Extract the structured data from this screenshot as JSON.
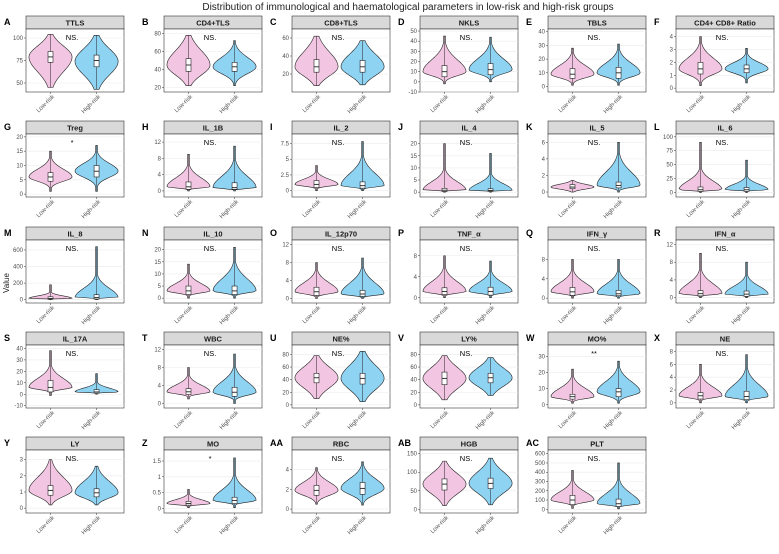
{
  "title": "Distribution of immunological and haematological parameters in low-risk and high-risk groups",
  "y_axis_label": "Value",
  "groups": [
    "Low-risk",
    "High-risk"
  ],
  "colors": {
    "low": "#f2c6e2",
    "high": "#8fd3f3",
    "strip": "#d9d9d9",
    "panel_border": "#333333",
    "grid": "#ebebeb"
  },
  "chart_data": [
    {
      "tag": "A",
      "name": "TTLS",
      "type": "violin",
      "sig": "NS.",
      "ylim": [
        40,
        110
      ],
      "yticks": [
        50,
        75,
        100
      ],
      "low": {
        "q1": 73,
        "median": 79,
        "q3": 85,
        "min": 45,
        "max": 104,
        "mode": 79,
        "spread": 0.8
      },
      "high": {
        "q1": 68,
        "median": 75,
        "q3": 81,
        "min": 43,
        "max": 103,
        "mode": 74,
        "spread": 0.8
      }
    },
    {
      "tag": "B",
      "name": "CD4+TLS",
      "type": "violin",
      "sig": "NS.",
      "ylim": [
        15,
        85
      ],
      "yticks": [
        20,
        40,
        60,
        80
      ],
      "low": {
        "q1": 38,
        "median": 45,
        "q3": 52,
        "min": 22,
        "max": 78,
        "mode": 45,
        "spread": 0.8
      },
      "high": {
        "q1": 38,
        "median": 43,
        "q3": 48,
        "min": 22,
        "max": 72,
        "mode": 43,
        "spread": 0.6
      }
    },
    {
      "tag": "C",
      "name": "CD8+TLS",
      "type": "violin",
      "sig": "NS.",
      "ylim": [
        0,
        70
      ],
      "yticks": [
        20,
        40,
        60
      ],
      "low": {
        "q1": 22,
        "median": 28,
        "q3": 36,
        "min": 7,
        "max": 62,
        "mode": 28,
        "spread": 0.8
      },
      "high": {
        "q1": 22,
        "median": 28,
        "q3": 35,
        "min": 8,
        "max": 57,
        "mode": 28,
        "spread": 0.8
      }
    },
    {
      "tag": "D",
      "name": "NKLS",
      "type": "violin",
      "sig": "NS.",
      "ylim": [
        -10,
        52
      ],
      "yticks": [
        -10,
        0,
        10,
        20,
        30,
        40,
        50
      ],
      "low": {
        "q1": 5,
        "median": 10,
        "q3": 16,
        "min": -2,
        "max": 45,
        "mode": 10,
        "spread": 0.55
      },
      "high": {
        "q1": 7,
        "median": 12,
        "q3": 18,
        "min": 0,
        "max": 44,
        "mode": 12,
        "spread": 0.55
      }
    },
    {
      "tag": "E",
      "name": "TBLS",
      "type": "violin",
      "sig": "NS.",
      "ylim": [
        -4,
        42
      ],
      "yticks": [
        0,
        10,
        20,
        30,
        40
      ],
      "low": {
        "q1": 6,
        "median": 9,
        "q3": 13,
        "min": 1,
        "max": 28,
        "mode": 9,
        "spread": 0.55
      },
      "high": {
        "q1": 6,
        "median": 10,
        "q3": 14,
        "min": 1,
        "max": 31,
        "mode": 10,
        "spread": 0.55
      }
    },
    {
      "tag": "F",
      "name": "CD4+ CD8+ Ratio",
      "type": "violin",
      "sig": "NS.",
      "ylim": [
        -0.3,
        4.6
      ],
      "yticks": [
        0,
        1,
        2,
        3,
        4
      ],
      "low": {
        "q1": 1.1,
        "median": 1.5,
        "q3": 2.0,
        "min": 0.2,
        "max": 4.0,
        "mode": 1.5,
        "spread": 0.55
      },
      "high": {
        "q1": 1.2,
        "median": 1.5,
        "q3": 1.8,
        "min": 0.4,
        "max": 3.1,
        "mode": 1.5,
        "spread": 0.5
      }
    },
    {
      "tag": "G",
      "name": "Treg",
      "type": "violin",
      "sig": "*",
      "ylim": [
        -1,
        21
      ],
      "yticks": [
        0,
        5,
        10,
        15,
        20
      ],
      "low": {
        "q1": 4.5,
        "median": 6,
        "q3": 7.5,
        "min": 1,
        "max": 15,
        "mode": 6,
        "spread": 0.5
      },
      "high": {
        "q1": 6,
        "median": 8,
        "q3": 10,
        "min": 1,
        "max": 17,
        "mode": 8,
        "spread": 0.5
      }
    },
    {
      "tag": "H",
      "name": "IL_1B",
      "type": "violin",
      "sig": "NS.",
      "ylim": [
        -1.5,
        14
      ],
      "yticks": [
        0,
        4,
        8,
        12
      ],
      "low": {
        "q1": 0.4,
        "median": 1,
        "q3": 2.2,
        "min": 0,
        "max": 9,
        "mode": 1,
        "spread": 0.45
      },
      "high": {
        "q1": 0.4,
        "median": 0.8,
        "q3": 2,
        "min": 0,
        "max": 11,
        "mode": 0.8,
        "spread": 0.45
      }
    },
    {
      "tag": "I",
      "name": "IL_2",
      "type": "violin",
      "sig": "NS.",
      "ylim": [
        -1,
        9
      ],
      "yticks": [
        0,
        2.5,
        5,
        7.5
      ],
      "low": {
        "q1": 0.5,
        "median": 1,
        "q3": 1.6,
        "min": 0,
        "max": 4,
        "mode": 1,
        "spread": 0.45
      },
      "high": {
        "q1": 0.4,
        "median": 0.8,
        "q3": 1.4,
        "min": 0,
        "max": 7.8,
        "mode": 0.8,
        "spread": 0.45
      }
    },
    {
      "tag": "J",
      "name": "IL_4",
      "type": "violin",
      "sig": "NS.",
      "ylim": [
        -2,
        24
      ],
      "yticks": [
        0,
        5,
        10,
        15,
        20
      ],
      "low": {
        "q1": 0.3,
        "median": 0.8,
        "q3": 1.6,
        "min": 0,
        "max": 20,
        "mode": 0.8,
        "spread": 0.3
      },
      "high": {
        "q1": 0.3,
        "median": 0.7,
        "q3": 1.4,
        "min": 0,
        "max": 16,
        "mode": 0.7,
        "spread": 0.3
      }
    },
    {
      "tag": "K",
      "name": "IL_5",
      "type": "violin",
      "sig": "NS.",
      "ylim": [
        -0.6,
        7
      ],
      "yticks": [
        0,
        2,
        4,
        6
      ],
      "low": {
        "q1": 0.4,
        "median": 0.6,
        "q3": 0.9,
        "min": 0,
        "max": 1.4,
        "mode": 0.6,
        "spread": 0.7
      },
      "high": {
        "q1": 0.5,
        "median": 0.8,
        "q3": 1.2,
        "min": 0,
        "max": 6,
        "mode": 0.8,
        "spread": 0.5
      }
    },
    {
      "tag": "L",
      "name": "IL_6",
      "type": "violin",
      "sig": "NS.",
      "ylim": [
        -8,
        105
      ],
      "yticks": [
        0,
        25,
        50,
        75,
        100
      ],
      "low": {
        "q1": 2,
        "median": 5,
        "q3": 10,
        "min": 0,
        "max": 90,
        "mode": 5,
        "spread": 0.3
      },
      "high": {
        "q1": 2,
        "median": 5,
        "q3": 9,
        "min": 0,
        "max": 58,
        "mode": 5,
        "spread": 0.3
      }
    },
    {
      "tag": "M",
      "name": "IL_8",
      "type": "violin",
      "sig": "NS.",
      "ylim": [
        -40,
        720
      ],
      "yticks": [
        0,
        200,
        400,
        600
      ],
      "low": {
        "q1": 5,
        "median": 15,
        "q3": 35,
        "min": 0,
        "max": 180,
        "mode": 15,
        "spread": 0.3
      },
      "high": {
        "q1": 8,
        "median": 25,
        "q3": 60,
        "min": 0,
        "max": 640,
        "mode": 25,
        "spread": 0.3
      }
    },
    {
      "tag": "N",
      "name": "IL_10",
      "type": "violin",
      "sig": "NS.",
      "ylim": [
        -2,
        24
      ],
      "yticks": [
        0,
        5,
        10,
        15,
        20
      ],
      "low": {
        "q1": 1.5,
        "median": 3,
        "q3": 5,
        "min": 0,
        "max": 14,
        "mode": 3,
        "spread": 0.45
      },
      "high": {
        "q1": 1.5,
        "median": 3,
        "q3": 5,
        "min": 0,
        "max": 21,
        "mode": 3,
        "spread": 0.45
      }
    },
    {
      "tag": "O",
      "name": "IL_12p70",
      "type": "violin",
      "sig": "NS.",
      "ylim": [
        -1,
        13
      ],
      "yticks": [
        0,
        4,
        8,
        12
      ],
      "low": {
        "q1": 0.7,
        "median": 1.5,
        "q3": 2.5,
        "min": 0,
        "max": 8,
        "mode": 1.5,
        "spread": 0.5
      },
      "high": {
        "q1": 0.5,
        "median": 1,
        "q3": 1.8,
        "min": 0,
        "max": 9,
        "mode": 1,
        "spread": 0.5
      }
    },
    {
      "tag": "P",
      "name": "TNF_α",
      "type": "violin",
      "sig": "NS.",
      "ylim": [
        -1,
        11
      ],
      "yticks": [
        0,
        4,
        8
      ],
      "low": {
        "q1": 0.6,
        "median": 1.2,
        "q3": 1.9,
        "min": 0,
        "max": 8,
        "mode": 1.2,
        "spread": 0.45
      },
      "high": {
        "q1": 0.5,
        "median": 1.2,
        "q3": 2,
        "min": 0,
        "max": 7,
        "mode": 1.2,
        "spread": 0.45
      }
    },
    {
      "tag": "Q",
      "name": "IFN_γ",
      "type": "violin",
      "sig": "NS.",
      "ylim": [
        -1,
        12
      ],
      "yticks": [
        0,
        4,
        8
      ],
      "low": {
        "q1": 0.6,
        "median": 1.3,
        "q3": 2.2,
        "min": 0,
        "max": 8,
        "mode": 1.3,
        "spread": 0.45
      },
      "high": {
        "q1": 0.5,
        "median": 0.9,
        "q3": 1.6,
        "min": 0,
        "max": 8,
        "mode": 0.9,
        "spread": 0.45
      }
    },
    {
      "tag": "R",
      "name": "IFN_α",
      "type": "violin",
      "sig": "NS.",
      "ylim": [
        -1.2,
        13
      ],
      "yticks": [
        0,
        4,
        8,
        12
      ],
      "low": {
        "q1": 0.4,
        "median": 0.9,
        "q3": 1.6,
        "min": 0,
        "max": 10,
        "mode": 0.9,
        "spread": 0.4
      },
      "high": {
        "q1": 0.3,
        "median": 0.8,
        "q3": 1.5,
        "min": 0,
        "max": 8,
        "mode": 0.8,
        "spread": 0.4
      }
    },
    {
      "tag": "S",
      "name": "IL_17A",
      "type": "violin",
      "sig": "NS.",
      "ylim": [
        -12,
        43
      ],
      "yticks": [
        -10,
        0,
        10,
        20,
        30,
        40
      ],
      "low": {
        "q1": 2,
        "median": 6,
        "q3": 12,
        "min": -1,
        "max": 38,
        "mode": 6,
        "spread": 0.4
      },
      "high": {
        "q1": 1,
        "median": 2,
        "q3": 4,
        "min": 0,
        "max": 18,
        "mode": 2,
        "spread": 0.35
      }
    },
    {
      "tag": "T",
      "name": "WBC",
      "type": "violin",
      "sig": "NS.",
      "ylim": [
        -1,
        13
      ],
      "yticks": [
        0,
        4,
        8,
        12
      ],
      "low": {
        "q1": 2,
        "median": 2.6,
        "q3": 3.3,
        "min": 1,
        "max": 8,
        "mode": 2.6,
        "spread": 0.45
      },
      "high": {
        "q1": 1.6,
        "median": 2.5,
        "q3": 3.6,
        "min": 0,
        "max": 11,
        "mode": 2.5,
        "spread": 0.45
      }
    },
    {
      "tag": "U",
      "name": "NE%",
      "type": "violin",
      "sig": "NS.",
      "ylim": [
        -5,
        95
      ],
      "yticks": [
        0,
        20,
        40,
        60,
        80
      ],
      "low": {
        "q1": 35,
        "median": 43,
        "q3": 50,
        "min": 10,
        "max": 78,
        "mode": 43,
        "spread": 0.8
      },
      "high": {
        "q1": 33,
        "median": 42,
        "q3": 50,
        "min": 5,
        "max": 85,
        "mode": 42,
        "spread": 0.8
      }
    },
    {
      "tag": "V",
      "name": "LY%",
      "type": "violin",
      "sig": "NS.",
      "ylim": [
        -5,
        95
      ],
      "yticks": [
        0,
        20,
        40,
        60,
        80
      ],
      "low": {
        "q1": 32,
        "median": 42,
        "q3": 52,
        "min": 8,
        "max": 78,
        "mode": 42,
        "spread": 0.8
      },
      "high": {
        "q1": 35,
        "median": 43,
        "q3": 50,
        "min": 15,
        "max": 75,
        "mode": 43,
        "spread": 0.8
      }
    },
    {
      "tag": "W",
      "name": "MO%",
      "type": "violin",
      "sig": "**",
      "ylim": [
        -2,
        37
      ],
      "yticks": [
        0,
        10,
        20,
        30
      ],
      "low": {
        "q1": 3.5,
        "median": 5,
        "q3": 6.5,
        "min": 1,
        "max": 22,
        "mode": 5,
        "spread": 0.5
      },
      "high": {
        "q1": 5,
        "median": 8,
        "q3": 10,
        "min": 1,
        "max": 27,
        "mode": 8,
        "spread": 0.55
      }
    },
    {
      "tag": "X",
      "name": "NE",
      "type": "violin",
      "sig": "NS.",
      "ylim": [
        -0.8,
        9
      ],
      "yticks": [
        0,
        2,
        4,
        6,
        8
      ],
      "low": {
        "q1": 0.6,
        "median": 1.1,
        "q3": 1.6,
        "min": 0,
        "max": 6,
        "mode": 1.1,
        "spread": 0.45
      },
      "high": {
        "q1": 0.5,
        "median": 1,
        "q3": 1.8,
        "min": 0,
        "max": 7.5,
        "mode": 1,
        "spread": 0.45
      }
    },
    {
      "tag": "Y",
      "name": "LY",
      "type": "violin",
      "sig": "NS.",
      "ylim": [
        -0.3,
        3.6
      ],
      "yticks": [
        0,
        1,
        2,
        3
      ],
      "low": {
        "q1": 0.8,
        "median": 1.1,
        "q3": 1.4,
        "min": 0.2,
        "max": 3,
        "mode": 1.1,
        "spread": 0.7
      },
      "high": {
        "q1": 0.7,
        "median": 0.95,
        "q3": 1.2,
        "min": 0.2,
        "max": 2.6,
        "mode": 0.95,
        "spread": 0.7
      }
    },
    {
      "tag": "Z",
      "name": "MO",
      "type": "violin",
      "sig": "*",
      "ylim": [
        -0.15,
        1.85
      ],
      "yticks": [
        0,
        0.5,
        1,
        1.5
      ],
      "low": {
        "q1": 0.1,
        "median": 0.15,
        "q3": 0.22,
        "min": 0.02,
        "max": 0.6,
        "mode": 0.15,
        "spread": 0.45
      },
      "high": {
        "q1": 0.15,
        "median": 0.25,
        "q3": 0.35,
        "min": 0.02,
        "max": 1.6,
        "mode": 0.25,
        "spread": 0.4
      }
    },
    {
      "tag": "AA",
      "name": "RBC",
      "type": "violin",
      "sig": "NS.",
      "ylim": [
        -0.4,
        6
      ],
      "yticks": [
        0,
        2,
        4
      ],
      "low": {
        "q1": 1.4,
        "median": 1.9,
        "q3": 2.4,
        "min": 0.5,
        "max": 4.2,
        "mode": 1.9,
        "spread": 0.6
      },
      "high": {
        "q1": 1.5,
        "median": 2.1,
        "q3": 2.7,
        "min": 0.4,
        "max": 4.8,
        "mode": 2.1,
        "spread": 0.6
      }
    },
    {
      "tag": "AB",
      "name": "HGB",
      "type": "violin",
      "sig": "NS.",
      "ylim": [
        -10,
        160
      ],
      "yticks": [
        0,
        50,
        100,
        150
      ],
      "low": {
        "q1": 52,
        "median": 68,
        "q3": 82,
        "min": 10,
        "max": 130,
        "mode": 68,
        "spread": 0.75
      },
      "high": {
        "q1": 56,
        "median": 70,
        "q3": 84,
        "min": 12,
        "max": 138,
        "mode": 70,
        "spread": 0.75
      }
    },
    {
      "tag": "AC",
      "name": "PLT",
      "type": "violin",
      "sig": "NS.",
      "ylim": [
        -40,
        640
      ],
      "yticks": [
        0,
        100,
        200,
        300,
        400,
        500,
        600
      ],
      "low": {
        "q1": 50,
        "median": 100,
        "q3": 150,
        "min": 10,
        "max": 420,
        "mode": 100,
        "spread": 0.45
      },
      "high": {
        "q1": 30,
        "median": 60,
        "q3": 110,
        "min": 5,
        "max": 500,
        "mode": 60,
        "spread": 0.4
      }
    }
  ]
}
